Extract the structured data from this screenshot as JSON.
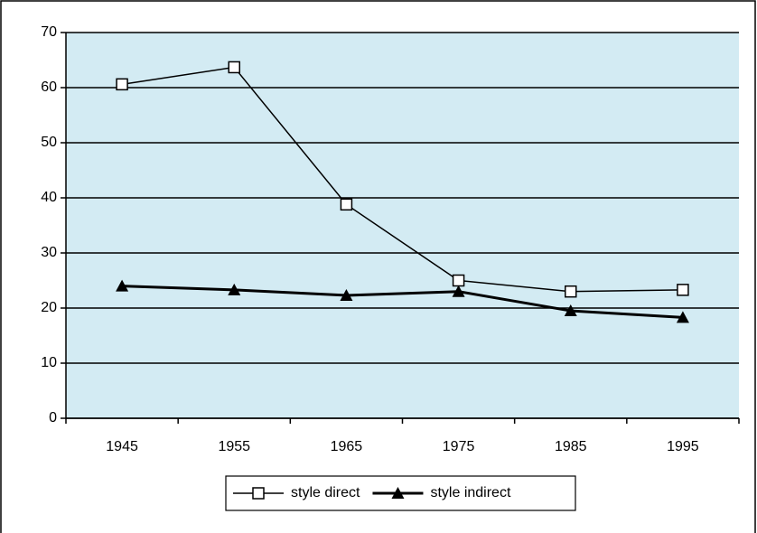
{
  "chart_data": {
    "type": "line",
    "categories": [
      "1945",
      "1955",
      "1965",
      "1975",
      "1985",
      "1995"
    ],
    "series": [
      {
        "name": "style direct",
        "color": "#000000",
        "marker": "square",
        "line_width": 1.5,
        "values": [
          60.6,
          63.7,
          38.8,
          25,
          23,
          23.3
        ]
      },
      {
        "name": "style indirect",
        "color": "#000000",
        "marker": "triangle",
        "line_width": 3,
        "values": [
          24,
          23.3,
          22.3,
          23,
          19.5,
          18.3
        ]
      }
    ],
    "ylim": [
      0,
      70
    ],
    "yticks": [
      0,
      10,
      20,
      30,
      40,
      50,
      60,
      70
    ],
    "grid": true,
    "plot_background": "#d3ebf3",
    "legend": "bottom"
  }
}
